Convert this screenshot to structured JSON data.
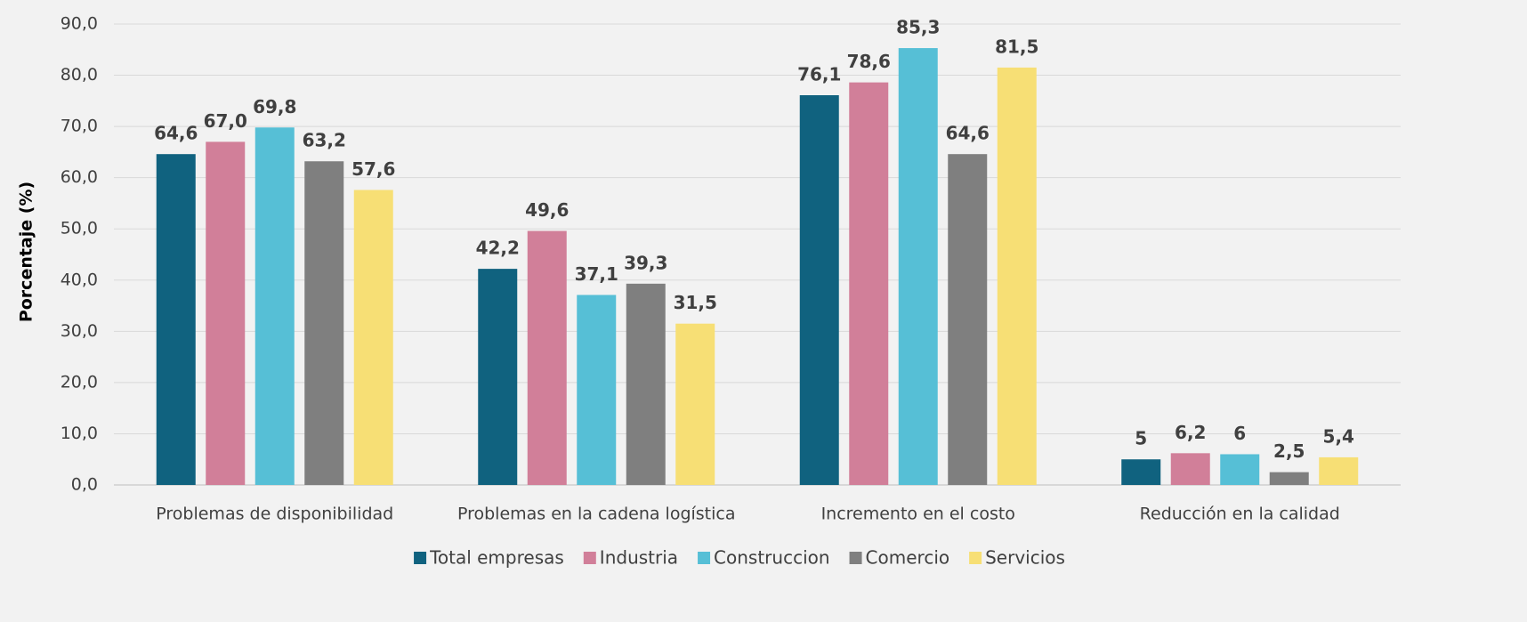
{
  "chart_data": {
    "type": "bar",
    "y_label": "Porcentaje (%)",
    "categories": [
      "Problemas de disponibilidad",
      "Problemas en la cadena logística",
      "Incremento en el costo",
      "Reducción en la calidad"
    ],
    "series": [
      {
        "name": "Total empresas",
        "color": "#10627f",
        "values": [
          64.6,
          42.2,
          76.1,
          5
        ],
        "value_labels": [
          "64,6",
          "42,2",
          "76,1",
          "5"
        ]
      },
      {
        "name": "Industria",
        "color": "#d17f99",
        "values": [
          67.0,
          49.6,
          78.6,
          6.2
        ],
        "value_labels": [
          "67,0",
          "49,6",
          "78,6",
          "6,2"
        ]
      },
      {
        "name": "Construccion",
        "color": "#56bfd6",
        "values": [
          69.8,
          37.1,
          85.3,
          6
        ],
        "value_labels": [
          "69,8",
          "37,1",
          "85,3",
          "6"
        ]
      },
      {
        "name": "Comercio",
        "color": "#7f7f7f",
        "values": [
          63.2,
          39.3,
          64.6,
          2.5
        ],
        "value_labels": [
          "63,2",
          "39,3",
          "64,6",
          "2,5"
        ]
      },
      {
        "name": "Servicios",
        "color": "#f7df75",
        "values": [
          57.6,
          31.5,
          81.5,
          5.4
        ],
        "value_labels": [
          "57,6",
          "31,5",
          "81,5",
          "5,4"
        ]
      }
    ],
    "ylim": [
      0,
      90
    ],
    "yticks": [
      {
        "value": 0,
        "label": "0,0"
      },
      {
        "value": 10,
        "label": "10,0"
      },
      {
        "value": 20,
        "label": "20,0"
      },
      {
        "value": 30,
        "label": "30,0"
      },
      {
        "value": 40,
        "label": "40,0"
      },
      {
        "value": 50,
        "label": "50,0"
      },
      {
        "value": 60,
        "label": "60,0"
      },
      {
        "value": 70,
        "label": "70,0"
      },
      {
        "value": 80,
        "label": "80,0"
      },
      {
        "value": 90,
        "label": "90,0"
      }
    ],
    "grid": true,
    "legend": "bottom"
  }
}
